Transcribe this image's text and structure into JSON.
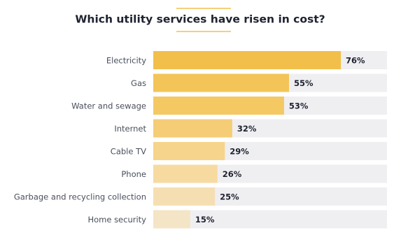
{
  "chart_data": {
    "type": "bar",
    "orientation": "horizontal",
    "title": "Which utility services have risen in cost?",
    "categories": [
      "Electricity",
      "Gas",
      "Water and sewage",
      "Internet",
      "Cable TV",
      "Phone",
      "Garbage and recycling collection",
      "Home security"
    ],
    "values": [
      76,
      55,
      53,
      32,
      29,
      26,
      25,
      15
    ],
    "value_labels": [
      "76%",
      "55%",
      "53%",
      "32%",
      "29%",
      "26%",
      "25%",
      "15%"
    ],
    "colors": [
      "#f2bf4a",
      "#f3c457",
      "#f4c964",
      "#f5cd76",
      "#f6d48b",
      "#f6daa0",
      "#f5dfb2",
      "#f4e5c6"
    ]
  }
}
